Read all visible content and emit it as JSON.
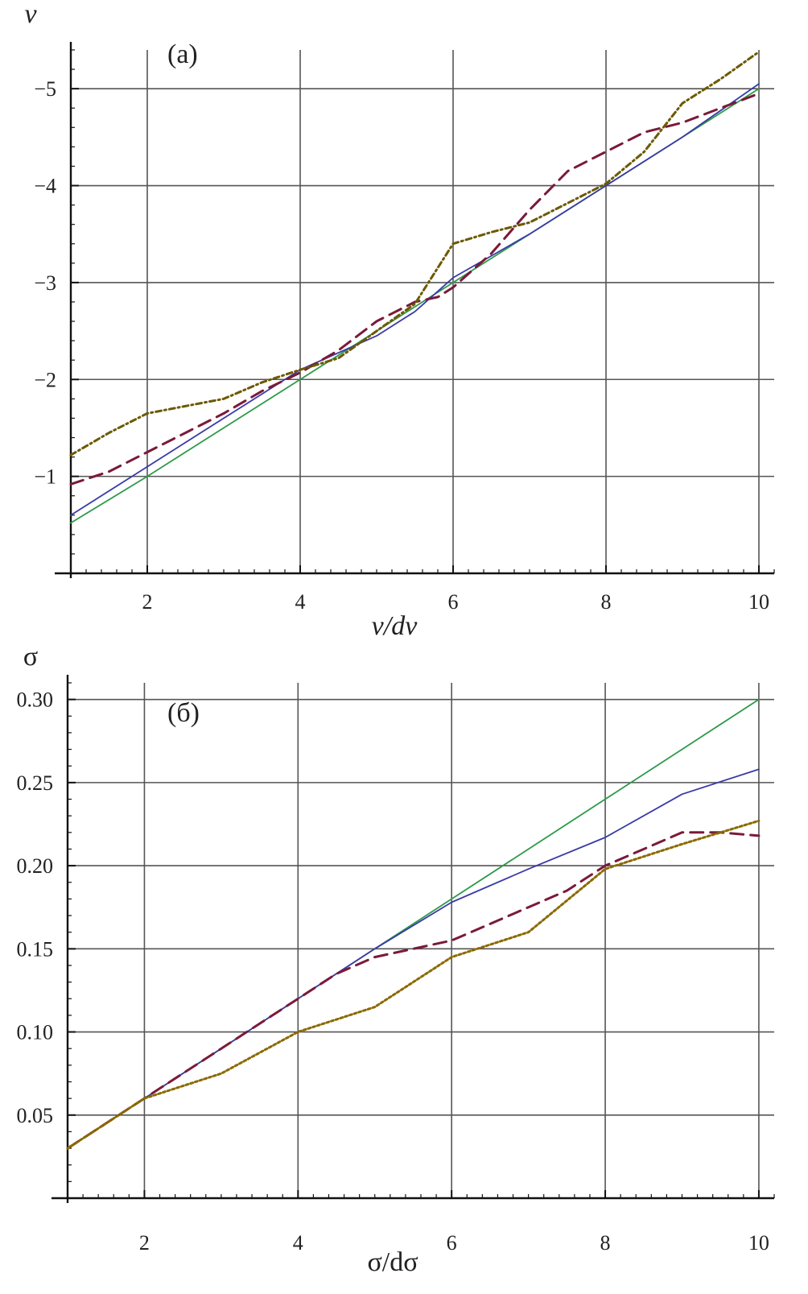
{
  "chart_data": [
    {
      "type": "line",
      "panel_label": "(a)",
      "ylabel": "v",
      "xlabel": "v/dv",
      "xlim": [
        1,
        10.2
      ],
      "ylim": [
        0.0,
        -5.4
      ],
      "x_ticks": [
        2,
        4,
        6,
        8,
        10
      ],
      "y_ticks": [
        -1,
        -2,
        -3,
        -4,
        -5
      ],
      "grid": true,
      "series": [
        {
          "style": "solid",
          "color": "#2e9a4a",
          "x": [
            1,
            2,
            3,
            4,
            5,
            6,
            7,
            8,
            9,
            10
          ],
          "y": [
            -0.52,
            -1.0,
            -1.5,
            -2.0,
            -2.5,
            -3.0,
            -3.5,
            -4.0,
            -4.5,
            -5.0
          ]
        },
        {
          "style": "solid",
          "color": "#3a3aa8",
          "x": [
            1,
            2,
            3,
            4,
            5,
            5.5,
            6,
            7,
            8,
            9,
            10
          ],
          "y": [
            -0.6,
            -1.1,
            -1.6,
            -2.1,
            -2.45,
            -2.7,
            -3.05,
            -3.5,
            -4.0,
            -4.5,
            -5.05
          ]
        },
        {
          "style": "dashed",
          "color": "#7a1a3a",
          "x": [
            1,
            1.5,
            2,
            2.5,
            3,
            3.5,
            4,
            4.5,
            5,
            5.5,
            5.8,
            6,
            6.5,
            7,
            7.5,
            8,
            8.5,
            9,
            9.5,
            10
          ],
          "y": [
            -0.92,
            -1.05,
            -1.25,
            -1.45,
            -1.65,
            -1.88,
            -2.07,
            -2.3,
            -2.6,
            -2.8,
            -2.85,
            -2.95,
            -3.3,
            -3.75,
            -4.15,
            -4.35,
            -4.55,
            -4.65,
            -4.8,
            -4.95
          ]
        },
        {
          "style": "dashdot",
          "color": "#6b5a00",
          "x": [
            1,
            1.5,
            2,
            3,
            3.5,
            4,
            4.5,
            5,
            5.5,
            6,
            6.5,
            7,
            7.5,
            8,
            8.5,
            9,
            9.5,
            10
          ],
          "y": [
            -1.22,
            -1.45,
            -1.65,
            -1.8,
            -1.97,
            -2.1,
            -2.22,
            -2.5,
            -2.78,
            -3.4,
            -3.52,
            -3.62,
            -3.82,
            -4.02,
            -4.35,
            -4.85,
            -5.1,
            -5.38
          ]
        }
      ]
    },
    {
      "type": "line",
      "panel_label": "(б)",
      "ylabel": "σ",
      "xlabel": "σ/dσ",
      "xlim": [
        1,
        10.2
      ],
      "ylim": [
        0.0,
        0.31
      ],
      "x_ticks": [
        2,
        4,
        6,
        8,
        10
      ],
      "y_ticks": [
        0.05,
        0.1,
        0.15,
        0.2,
        0.25,
        0.3
      ],
      "y_tick_labels": [
        "0.05",
        "0.10",
        "0.15",
        "0.20",
        "0.25",
        "0.30"
      ],
      "grid": true,
      "series": [
        {
          "style": "solid",
          "color": "#2e9a4a",
          "x": [
            1,
            2,
            3,
            4,
            5,
            6,
            7,
            8,
            9,
            10
          ],
          "y": [
            0.03,
            0.06,
            0.09,
            0.12,
            0.15,
            0.18,
            0.21,
            0.24,
            0.27,
            0.3
          ]
        },
        {
          "style": "solid",
          "color": "#3a3aa8",
          "x": [
            1,
            2,
            3,
            4,
            5,
            6,
            7,
            8,
            9,
            10
          ],
          "y": [
            0.03,
            0.06,
            0.09,
            0.12,
            0.15,
            0.178,
            0.198,
            0.217,
            0.243,
            0.258
          ]
        },
        {
          "style": "dashed",
          "color": "#7a1a3a",
          "x": [
            1,
            2,
            3,
            4,
            4.5,
            5,
            5.5,
            6,
            6.5,
            7,
            7.5,
            8,
            8.5,
            9,
            9.5,
            10
          ],
          "y": [
            0.03,
            0.06,
            0.09,
            0.12,
            0.135,
            0.145,
            0.15,
            0.155,
            0.165,
            0.175,
            0.185,
            0.2,
            0.21,
            0.22,
            0.22,
            0.218
          ]
        },
        {
          "style": "dotted",
          "color": "#8a6a00",
          "x": [
            1,
            2,
            3,
            4,
            5,
            5.5,
            6,
            7,
            8,
            9,
            10
          ],
          "y": [
            0.03,
            0.06,
            0.075,
            0.1,
            0.115,
            0.13,
            0.145,
            0.16,
            0.198,
            0.213,
            0.227
          ]
        }
      ]
    }
  ]
}
